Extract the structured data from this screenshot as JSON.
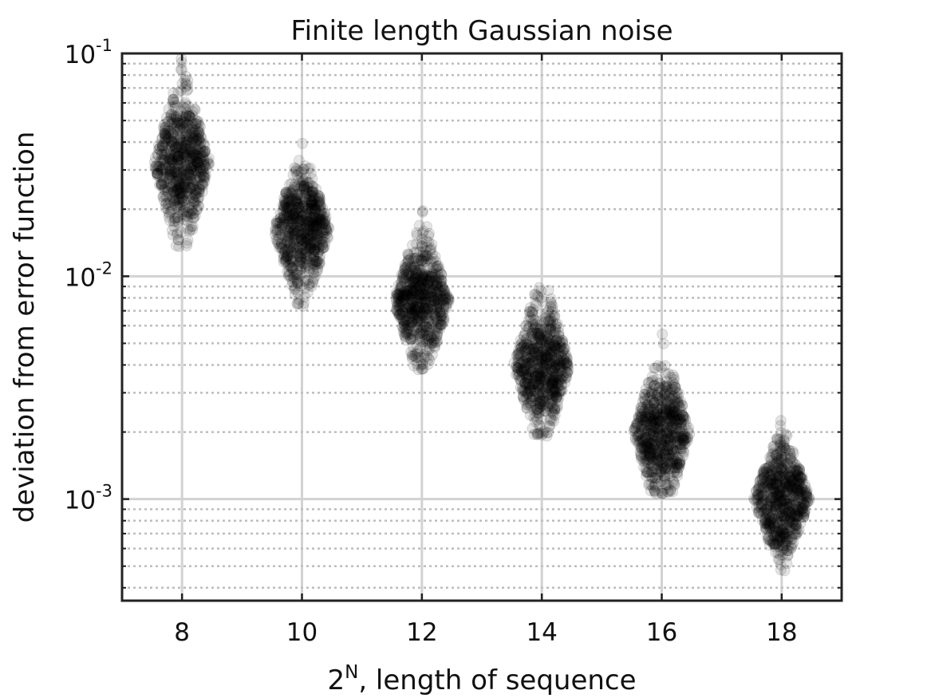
{
  "chart_data": {
    "type": "scatter",
    "title": "Finite length Gaussian noise",
    "xlabel": {
      "base": "2",
      "superscript": "N",
      "rest": ", length of sequence"
    },
    "ylabel": "deviation from error function",
    "xscale": "linear",
    "yscale": "log",
    "xlim": [
      7,
      19
    ],
    "ylim": [
      0.00035,
      0.1
    ],
    "xticks": [
      8,
      10,
      12,
      14,
      16,
      18
    ],
    "xtick_labels": [
      "8",
      "10",
      "12",
      "14",
      "16",
      "18"
    ],
    "yticks": [
      0.001,
      0.01,
      0.1
    ],
    "ytick_labels": [
      {
        "base": "10",
        "exp": "-3"
      },
      {
        "base": "10",
        "exp": "-2"
      },
      {
        "base": "10",
        "exp": "-1"
      }
    ],
    "grid": true,
    "marker_color": "#000000",
    "distributions": [
      {
        "x": 8,
        "median": 0.032,
        "min": 0.0135,
        "max": 0.095,
        "halfwidth": 0.5
      },
      {
        "x": 10,
        "median": 0.016,
        "min": 0.0072,
        "max": 0.04,
        "halfwidth": 0.5
      },
      {
        "x": 12,
        "median": 0.0078,
        "min": 0.0038,
        "max": 0.02,
        "halfwidth": 0.5
      },
      {
        "x": 14,
        "median": 0.004,
        "min": 0.0019,
        "max": 0.011,
        "halfwidth": 0.5
      },
      {
        "x": 16,
        "median": 0.002,
        "min": 0.00105,
        "max": 0.0055,
        "halfwidth": 0.5
      },
      {
        "x": 18,
        "median": 0.001,
        "min": 0.00047,
        "max": 0.0023,
        "halfwidth": 0.5
      }
    ]
  }
}
